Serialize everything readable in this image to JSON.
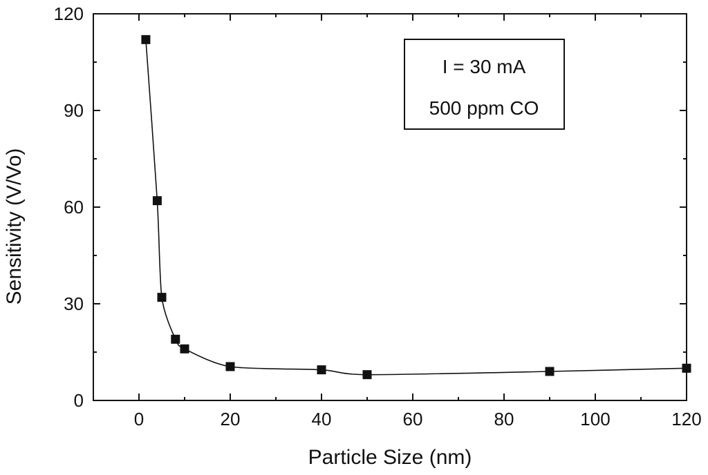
{
  "chart_data": {
    "type": "scatter",
    "title": "",
    "xlabel": "Particle Size (nm)",
    "ylabel": "Sensitivity (V/Vo)",
    "xlim": [
      -10,
      120
    ],
    "ylim": [
      0,
      120
    ],
    "xticks": [
      0,
      20,
      40,
      60,
      80,
      100,
      120
    ],
    "yticks": [
      0,
      30,
      60,
      90,
      120
    ],
    "xtick_labels": [
      "0",
      "20",
      "40",
      "60",
      "80",
      "100",
      "120"
    ],
    "ytick_labels": [
      "0",
      "30",
      "60",
      "90",
      "120"
    ],
    "grid": false,
    "series": [
      {
        "marker": "square",
        "line": "smooth",
        "color": "#111111",
        "points": [
          {
            "x": 1.5,
            "y": 112
          },
          {
            "x": 4,
            "y": 62
          },
          {
            "x": 5,
            "y": 32
          },
          {
            "x": 8,
            "y": 19
          },
          {
            "x": 10,
            "y": 16
          },
          {
            "x": 20,
            "y": 10.5
          },
          {
            "x": 40,
            "y": 9.5
          },
          {
            "x": 50,
            "y": 8
          },
          {
            "x": 90,
            "y": 9
          },
          {
            "x": 120,
            "y": 10
          }
        ]
      }
    ],
    "annotation": {
      "placement": "top-right",
      "lines": [
        "I = 30 mA",
        "500 ppm CO"
      ]
    }
  }
}
